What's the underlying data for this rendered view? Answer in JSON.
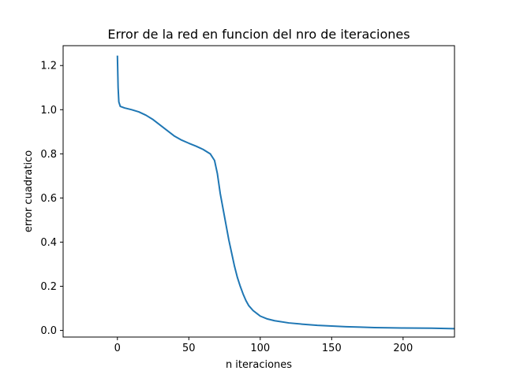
{
  "chart_data": {
    "type": "line",
    "title": "Error de la red en funcion del nro de iteraciones",
    "xlabel": "n iteraciones",
    "ylabel": "error cuadratico",
    "xlim": [
      -38,
      236
    ],
    "ylim": [
      -0.03,
      1.29
    ],
    "xticks": [
      0,
      50,
      100,
      150,
      200
    ],
    "yticks": [
      0.0,
      0.2,
      0.4,
      0.6,
      0.8,
      1.0,
      1.2
    ],
    "ytick_labels": [
      "0.0",
      "0.2",
      "0.4",
      "0.6",
      "0.8",
      "1.0",
      "1.2"
    ],
    "grid": false,
    "series": [
      {
        "color": "#1f77b4",
        "x": [
          0,
          0.5,
          1,
          2,
          5,
          10,
          15,
          20,
          25,
          30,
          35,
          40,
          45,
          50,
          55,
          60,
          65,
          68,
          70,
          72,
          74,
          76,
          78,
          80,
          82,
          84,
          86,
          88,
          90,
          92,
          95,
          98,
          100,
          105,
          110,
          120,
          130,
          140,
          150,
          160,
          170,
          180,
          190,
          200,
          210,
          220,
          236
        ],
        "y": [
          1.245,
          1.1,
          1.035,
          1.015,
          1.008,
          1.0,
          0.99,
          0.975,
          0.955,
          0.93,
          0.905,
          0.88,
          0.862,
          0.848,
          0.835,
          0.82,
          0.8,
          0.77,
          0.71,
          0.62,
          0.55,
          0.48,
          0.41,
          0.35,
          0.29,
          0.24,
          0.2,
          0.165,
          0.135,
          0.112,
          0.09,
          0.075,
          0.065,
          0.052,
          0.044,
          0.034,
          0.028,
          0.023,
          0.02,
          0.017,
          0.015,
          0.013,
          0.012,
          0.011,
          0.0105,
          0.01,
          0.008
        ]
      }
    ]
  }
}
